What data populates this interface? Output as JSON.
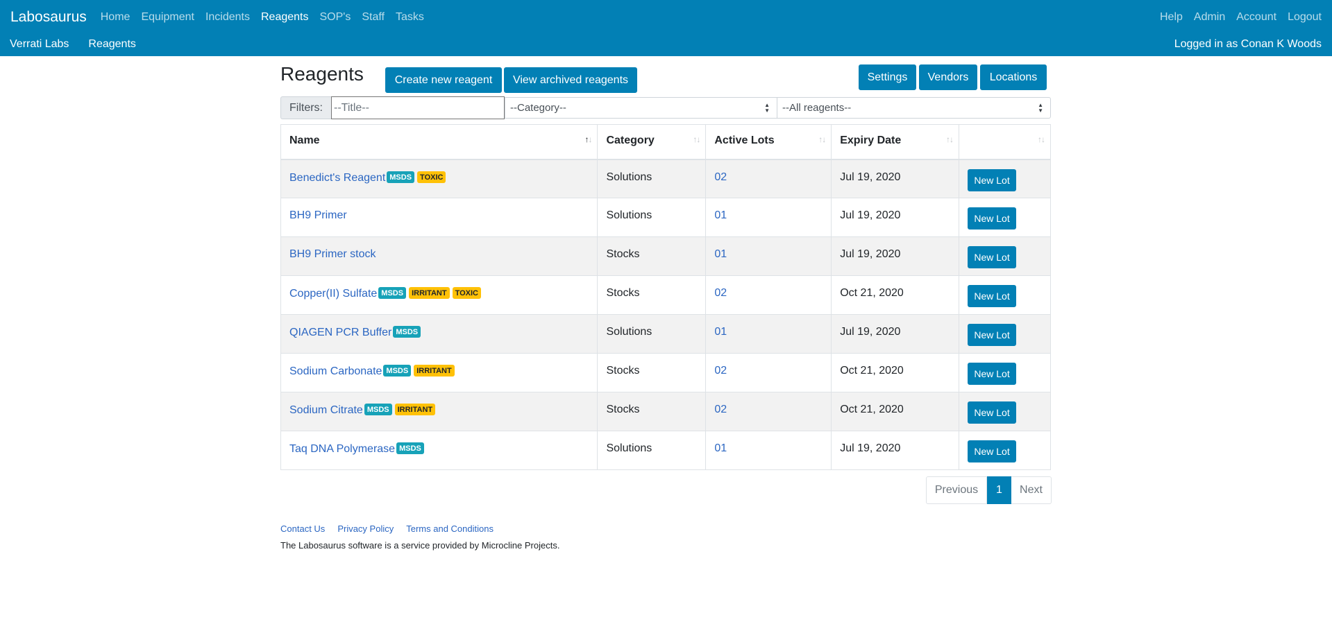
{
  "navbar": {
    "brand": "Labosaurus",
    "left_links": [
      "Home",
      "Equipment",
      "Incidents",
      "Reagents",
      "SOP's",
      "Staff",
      "Tasks"
    ],
    "active": "Reagents",
    "right_links": [
      "Help",
      "Admin",
      "Account",
      "Logout"
    ]
  },
  "subnav": {
    "lab": "Verrati Labs",
    "section": "Reagents",
    "logged_in": "Logged in as Conan K Woods"
  },
  "page": {
    "title": "Reagents",
    "create_button": "Create new reagent",
    "archived_button": "View archived reagents",
    "settings_button": "Settings",
    "vendors_button": "Vendors",
    "locations_button": "Locations"
  },
  "filters": {
    "label": "Filters:",
    "title_placeholder": "--Title--",
    "category_selected": "--Category--",
    "status_selected": "--All reagents--"
  },
  "table": {
    "headers": [
      "Name",
      "Category",
      "Active Lots",
      "Expiry Date",
      ""
    ],
    "new_lot_label": "New Lot",
    "rows": [
      {
        "name": "Benedict's Reagent",
        "badges": [
          {
            "text": "MSDS",
            "kind": "msds"
          },
          {
            "text": "TOXIC",
            "kind": "warn"
          }
        ],
        "category": "Solutions",
        "lots": "02",
        "expiry": "Jul 19, 2020"
      },
      {
        "name": "BH9 Primer",
        "badges": [],
        "category": "Solutions",
        "lots": "01",
        "expiry": "Jul 19, 2020"
      },
      {
        "name": "BH9 Primer stock",
        "badges": [],
        "category": "Stocks",
        "lots": "01",
        "expiry": "Jul 19, 2020"
      },
      {
        "name": "Copper(II) Sulfate",
        "badges": [
          {
            "text": "MSDS",
            "kind": "msds"
          },
          {
            "text": "IRRITANT",
            "kind": "warn"
          },
          {
            "text": "TOXIC",
            "kind": "warn"
          }
        ],
        "category": "Stocks",
        "lots": "02",
        "expiry": "Oct 21, 2020"
      },
      {
        "name": "QIAGEN PCR Buffer",
        "badges": [
          {
            "text": "MSDS",
            "kind": "msds"
          }
        ],
        "category": "Solutions",
        "lots": "01",
        "expiry": "Jul 19, 2020"
      },
      {
        "name": "Sodium Carbonate",
        "badges": [
          {
            "text": "MSDS",
            "kind": "msds"
          },
          {
            "text": "IRRITANT",
            "kind": "warn"
          }
        ],
        "category": "Stocks",
        "lots": "02",
        "expiry": "Oct 21, 2020"
      },
      {
        "name": "Sodium Citrate",
        "badges": [
          {
            "text": "MSDS",
            "kind": "msds"
          },
          {
            "text": "IRRITANT",
            "kind": "warn"
          }
        ],
        "category": "Stocks",
        "lots": "02",
        "expiry": "Oct 21, 2020"
      },
      {
        "name": "Taq DNA Polymerase",
        "badges": [
          {
            "text": "MSDS",
            "kind": "msds"
          }
        ],
        "category": "Solutions",
        "lots": "01",
        "expiry": "Jul 19, 2020"
      }
    ]
  },
  "pagination": {
    "previous": "Previous",
    "current": "1",
    "next": "Next"
  },
  "footer": {
    "links": [
      "Contact Us",
      "Privacy Policy",
      "Terms and Conditions"
    ],
    "note": "The Labosaurus software is a service provided by Microcline Projects."
  },
  "colors": {
    "primary": "#0280b5",
    "msds": "#17a2b8",
    "warning": "#ffc107",
    "link": "#2b66c2"
  }
}
